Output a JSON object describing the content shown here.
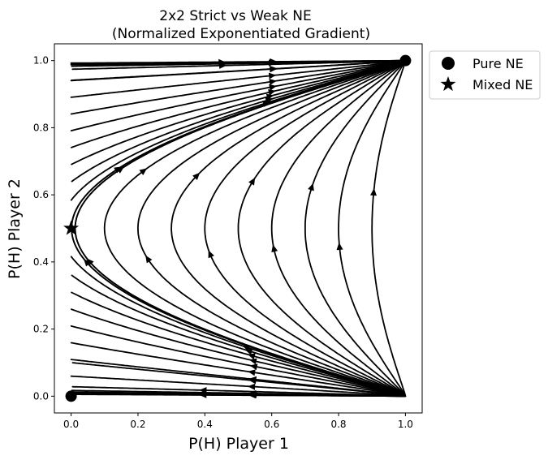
{
  "chart_data": {
    "type": "streamplot",
    "title": "2x2 Strict vs Weak NE",
    "subtitle": "(Normalized Exponentiated Gradient)",
    "xlabel": "P(H) Player 1",
    "ylabel": "P(H) Player 2",
    "xlim": [
      -0.05,
      1.05
    ],
    "ylim": [
      -0.05,
      1.05
    ],
    "xticks": [
      "0.0",
      "0.2",
      "0.4",
      "0.6",
      "0.8",
      "1.0"
    ],
    "yticks": [
      "0.0",
      "0.2",
      "0.4",
      "0.6",
      "0.8",
      "1.0"
    ],
    "xtick_values": [
      0,
      0.2,
      0.4,
      0.6,
      0.8,
      1.0
    ],
    "ytick_values": [
      0,
      0.2,
      0.4,
      0.6,
      0.8,
      1.0
    ],
    "grid": false,
    "legend_position": "outside-top-right",
    "stream_color": "#000000",
    "series": [
      {
        "name": "Pure NE",
        "marker": "circle",
        "points": [
          [
            0,
            0
          ],
          [
            1,
            1
          ]
        ]
      },
      {
        "name": "Mixed NE",
        "marker": "star",
        "points": [
          [
            0,
            0.5
          ]
        ]
      }
    ]
  }
}
